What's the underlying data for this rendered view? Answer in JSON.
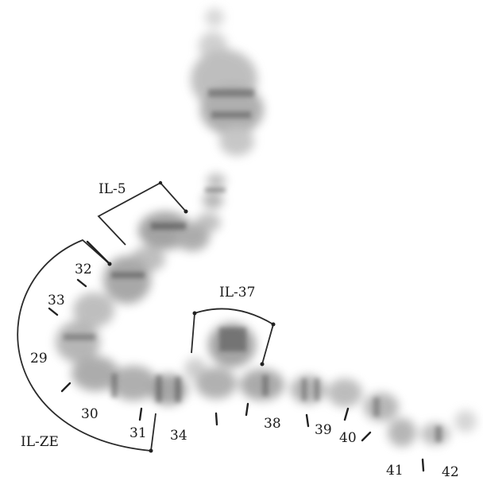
{
  "figure": {
    "region_labels": [
      "IL-5",
      "IL-37",
      "IL-ZE"
    ],
    "band_numbers": [
      "32",
      "33",
      "29",
      "30",
      "31",
      "34",
      "38",
      "39",
      "40",
      "41",
      "42"
    ]
  }
}
